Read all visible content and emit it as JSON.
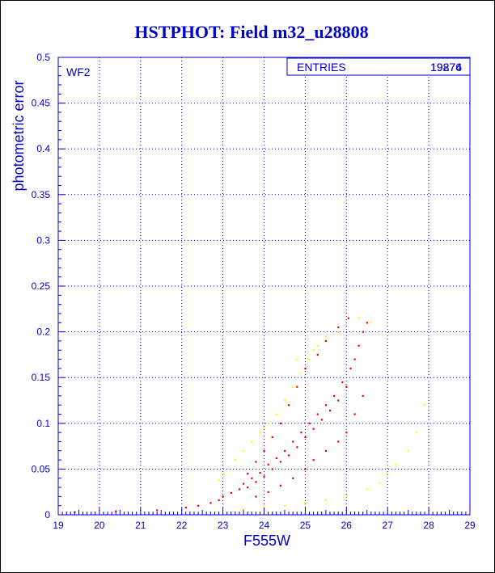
{
  "chart_data": {
    "type": "scatter",
    "title": "HSTPHOT: Field m32_u28808",
    "xlabel": "F555W",
    "ylabel": "photometric error",
    "xlim": [
      19,
      29
    ],
    "ylim": [
      0,
      0.5
    ],
    "xticks": [
      "19",
      "20",
      "21",
      "22",
      "23",
      "24",
      "25",
      "26",
      "27",
      "28",
      "29"
    ],
    "yticks": [
      "0",
      "0.05",
      "0.1",
      "0.15",
      "0.2",
      "0.25",
      "0.3",
      "0.35",
      "0.4",
      "0.45",
      "0.5"
    ],
    "grid": true,
    "panel_label": "WF2",
    "stats_box": {
      "label": "ENTRIES",
      "values": [
        "19876",
        "19274"
      ]
    },
    "colors": {
      "axes": "#0000cc",
      "series_red": "#ee0000",
      "series_yellow": "#ffff00"
    },
    "series": [
      {
        "color": "#ee0000",
        "points": [
          [
            22.1,
            0.008
          ],
          [
            22.4,
            0.01
          ],
          [
            22.7,
            0.013
          ],
          [
            22.9,
            0.016
          ],
          [
            23.0,
            0.02
          ],
          [
            23.2,
            0.024
          ],
          [
            23.4,
            0.028
          ],
          [
            23.5,
            0.034
          ],
          [
            23.6,
            0.03
          ],
          [
            23.7,
            0.04
          ],
          [
            23.8,
            0.036
          ],
          [
            23.9,
            0.046
          ],
          [
            24.0,
            0.042
          ],
          [
            24.1,
            0.055
          ],
          [
            24.2,
            0.05
          ],
          [
            24.3,
            0.062
          ],
          [
            24.4,
            0.058
          ],
          [
            24.5,
            0.07
          ],
          [
            24.6,
            0.065
          ],
          [
            24.7,
            0.08
          ],
          [
            24.8,
            0.074
          ],
          [
            24.9,
            0.09
          ],
          [
            25.0,
            0.085
          ],
          [
            25.1,
            0.1
          ],
          [
            25.2,
            0.094
          ],
          [
            25.3,
            0.11
          ],
          [
            25.4,
            0.104
          ],
          [
            25.5,
            0.12
          ],
          [
            25.6,
            0.114
          ],
          [
            25.7,
            0.13
          ],
          [
            25.8,
            0.125
          ],
          [
            25.9,
            0.145
          ],
          [
            26.0,
            0.14
          ],
          [
            26.1,
            0.16
          ],
          [
            26.2,
            0.17
          ],
          [
            26.3,
            0.185
          ],
          [
            26.4,
            0.2
          ],
          [
            26.5,
            0.21
          ],
          [
            26.05,
            0.215
          ],
          [
            25.8,
            0.205
          ],
          [
            25.5,
            0.19
          ],
          [
            25.3,
            0.175
          ],
          [
            25.0,
            0.16
          ],
          [
            24.8,
            0.14
          ],
          [
            24.6,
            0.12
          ],
          [
            24.4,
            0.1
          ],
          [
            24.2,
            0.085
          ],
          [
            24.0,
            0.07
          ],
          [
            23.8,
            0.058
          ],
          [
            23.6,
            0.045
          ],
          [
            25.2,
            0.06
          ],
          [
            25.5,
            0.07
          ],
          [
            25.8,
            0.08
          ],
          [
            26.0,
            0.09
          ],
          [
            26.2,
            0.11
          ],
          [
            26.4,
            0.13
          ],
          [
            25.0,
            0.05
          ],
          [
            24.7,
            0.04
          ],
          [
            24.4,
            0.032
          ],
          [
            24.1,
            0.025
          ],
          [
            23.8,
            0.02
          ],
          [
            19.4,
            0.003
          ],
          [
            20.4,
            0.004
          ],
          [
            21.4,
            0.005
          ]
        ]
      },
      {
        "color": "#ffff00",
        "points": [
          [
            23.3,
            0.06
          ],
          [
            23.5,
            0.07
          ],
          [
            23.7,
            0.08
          ],
          [
            23.9,
            0.09
          ],
          [
            24.1,
            0.1
          ],
          [
            24.3,
            0.11
          ],
          [
            24.5,
            0.125
          ],
          [
            24.7,
            0.14
          ],
          [
            24.9,
            0.155
          ],
          [
            25.1,
            0.17
          ],
          [
            25.3,
            0.185
          ],
          [
            25.5,
            0.195
          ],
          [
            25.8,
            0.2
          ],
          [
            26.3,
            0.215
          ],
          [
            26.6,
            0.21
          ],
          [
            23.0,
            0.045
          ],
          [
            22.9,
            0.038
          ],
          [
            24.0,
            0.095
          ],
          [
            24.8,
            0.17
          ],
          [
            25.2,
            0.18
          ],
          [
            23.5,
            0.006
          ],
          [
            24.0,
            0.008
          ],
          [
            24.5,
            0.01
          ],
          [
            25.0,
            0.013
          ],
          [
            25.5,
            0.016
          ],
          [
            26.0,
            0.02
          ],
          [
            26.5,
            0.028
          ],
          [
            26.8,
            0.035
          ],
          [
            27.0,
            0.045
          ],
          [
            27.2,
            0.055
          ],
          [
            27.5,
            0.07
          ],
          [
            27.7,
            0.09
          ],
          [
            27.9,
            0.12
          ]
        ]
      }
    ]
  }
}
